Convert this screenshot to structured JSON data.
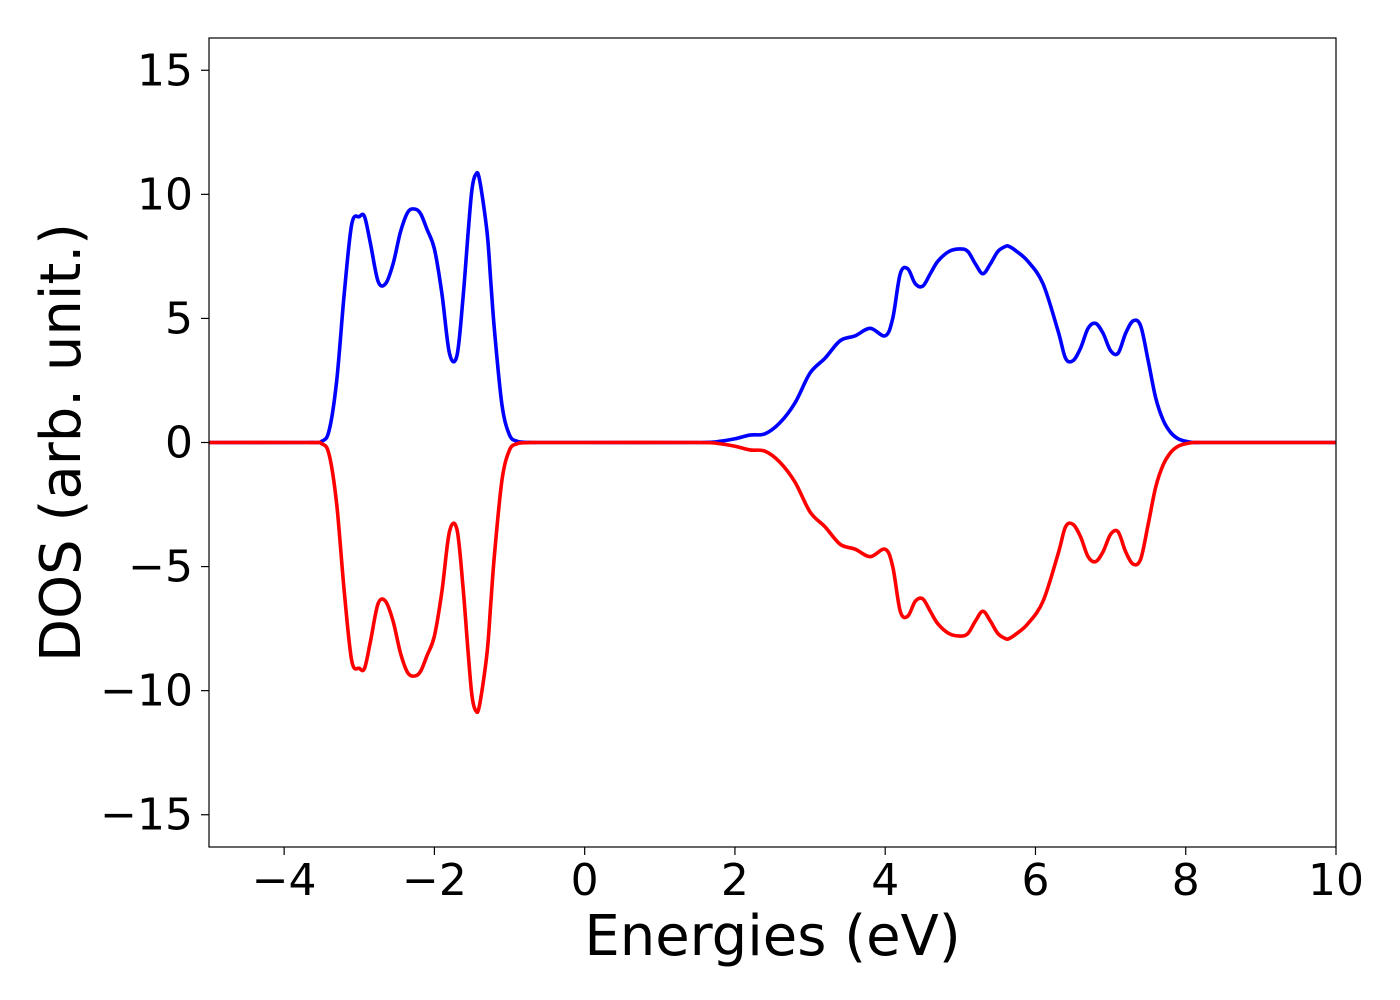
{
  "chart_data": {
    "type": "line",
    "title": "",
    "xlabel": "Energies (eV)",
    "ylabel": "DOS (arb. unit.)",
    "xlim": [
      -5,
      10
    ],
    "ylim": [
      -16.3,
      16.3
    ],
    "xticks": [
      -4,
      -2,
      0,
      2,
      4,
      6,
      8,
      10
    ],
    "yticks": [
      -15,
      -10,
      -5,
      0,
      5,
      10,
      15
    ],
    "xtick_labels": [
      "−4",
      "−2",
      "0",
      "2",
      "4",
      "6",
      "8",
      "10"
    ],
    "ytick_labels": [
      "−15",
      "−10",
      "−5",
      "0",
      "5",
      "10",
      "15"
    ],
    "grid": false,
    "legend": "none",
    "series": [
      {
        "color": "#0000ff",
        "x": [
          -5,
          -3.7,
          -3.5,
          -3.4,
          -3.3,
          -3.2,
          -3.1,
          -3.0,
          -2.93,
          -2.85,
          -2.75,
          -2.65,
          -2.55,
          -2.45,
          -2.35,
          -2.25,
          -2.18,
          -2.1,
          -2.0,
          -1.9,
          -1.8,
          -1.7,
          -1.62,
          -1.55,
          -1.5,
          -1.45,
          -1.4,
          -1.3,
          -1.25,
          -1.2,
          -1.1,
          -1.0,
          -0.9,
          -0.8,
          -0.7,
          -0.6,
          -0.5,
          0,
          1.5,
          1.8,
          2.0,
          2.2,
          2.4,
          2.6,
          2.8,
          3.0,
          3.2,
          3.4,
          3.6,
          3.8,
          4.0,
          4.1,
          4.2,
          4.3,
          4.4,
          4.5,
          4.6,
          4.7,
          4.85,
          5.0,
          5.1,
          5.2,
          5.3,
          5.4,
          5.5,
          5.6,
          5.65,
          5.75,
          5.9,
          6.1,
          6.3,
          6.4,
          6.5,
          6.6,
          6.7,
          6.8,
          6.9,
          7.0,
          7.1,
          7.2,
          7.3,
          7.4,
          7.5,
          7.6,
          7.7,
          7.8,
          7.9,
          8.0,
          8.1,
          8.2,
          8.3,
          8.4,
          8.5,
          10
        ],
        "y": [
          0,
          0,
          0.05,
          0.5,
          2.5,
          6.0,
          8.8,
          9.1,
          9.1,
          8.0,
          6.5,
          6.4,
          7.2,
          8.5,
          9.3,
          9.4,
          9.2,
          8.6,
          7.8,
          6.0,
          3.6,
          3.5,
          5.8,
          8.5,
          10.2,
          10.8,
          10.6,
          8.5,
          6.5,
          4.5,
          1.5,
          0.3,
          0.05,
          0.01,
          0,
          0,
          0,
          0,
          0,
          0.05,
          0.15,
          0.3,
          0.35,
          0.8,
          1.6,
          2.8,
          3.4,
          4.1,
          4.3,
          4.6,
          4.3,
          5.0,
          6.8,
          7.0,
          6.4,
          6.3,
          6.8,
          7.3,
          7.7,
          7.8,
          7.7,
          7.2,
          6.8,
          7.2,
          7.7,
          7.9,
          7.9,
          7.7,
          7.3,
          6.4,
          4.5,
          3.4,
          3.3,
          3.8,
          4.6,
          4.8,
          4.4,
          3.7,
          3.6,
          4.4,
          4.9,
          4.7,
          3.3,
          1.8,
          0.9,
          0.4,
          0.15,
          0.05,
          0,
          0,
          0,
          0,
          0,
          0
        ]
      },
      {
        "color": "#ff0000",
        "x": [
          -5,
          -3.7,
          -3.5,
          -3.4,
          -3.3,
          -3.2,
          -3.1,
          -3.0,
          -2.93,
          -2.85,
          -2.75,
          -2.65,
          -2.55,
          -2.45,
          -2.35,
          -2.25,
          -2.18,
          -2.1,
          -2.0,
          -1.9,
          -1.8,
          -1.7,
          -1.62,
          -1.55,
          -1.5,
          -1.45,
          -1.4,
          -1.3,
          -1.25,
          -1.2,
          -1.1,
          -1.0,
          -0.9,
          -0.8,
          -0.7,
          -0.6,
          -0.5,
          0,
          1.5,
          1.8,
          2.0,
          2.2,
          2.4,
          2.6,
          2.8,
          3.0,
          3.2,
          3.4,
          3.6,
          3.8,
          4.0,
          4.1,
          4.2,
          4.3,
          4.4,
          4.5,
          4.6,
          4.7,
          4.85,
          5.0,
          5.1,
          5.2,
          5.3,
          5.4,
          5.5,
          5.6,
          5.65,
          5.75,
          5.9,
          6.1,
          6.3,
          6.4,
          6.5,
          6.6,
          6.7,
          6.8,
          6.9,
          7.0,
          7.1,
          7.2,
          7.3,
          7.4,
          7.5,
          7.6,
          7.7,
          7.8,
          7.9,
          8.0,
          8.1,
          8.2,
          8.3,
          8.4,
          8.5,
          10
        ],
        "y": [
          0,
          0,
          -0.05,
          -0.5,
          -2.5,
          -6.0,
          -8.8,
          -9.1,
          -9.1,
          -8.0,
          -6.5,
          -6.4,
          -7.2,
          -8.5,
          -9.3,
          -9.4,
          -9.2,
          -8.6,
          -7.8,
          -6.0,
          -3.6,
          -3.5,
          -5.8,
          -8.5,
          -10.2,
          -10.8,
          -10.6,
          -8.5,
          -6.5,
          -4.5,
          -1.5,
          -0.3,
          -0.05,
          -0.01,
          0,
          0,
          0,
          0,
          0,
          -0.05,
          -0.15,
          -0.3,
          -0.35,
          -0.8,
          -1.6,
          -2.8,
          -3.4,
          -4.1,
          -4.3,
          -4.6,
          -4.3,
          -5.0,
          -6.8,
          -7.0,
          -6.4,
          -6.3,
          -6.8,
          -7.3,
          -7.7,
          -7.8,
          -7.7,
          -7.2,
          -6.8,
          -7.2,
          -7.7,
          -7.9,
          -7.9,
          -7.7,
          -7.3,
          -6.4,
          -4.5,
          -3.4,
          -3.3,
          -3.8,
          -4.6,
          -4.8,
          -4.4,
          -3.7,
          -3.6,
          -4.4,
          -4.9,
          -4.7,
          -3.3,
          -1.8,
          -0.9,
          -0.4,
          -0.15,
          -0.05,
          0,
          0,
          0,
          0,
          0,
          0
        ]
      }
    ]
  }
}
